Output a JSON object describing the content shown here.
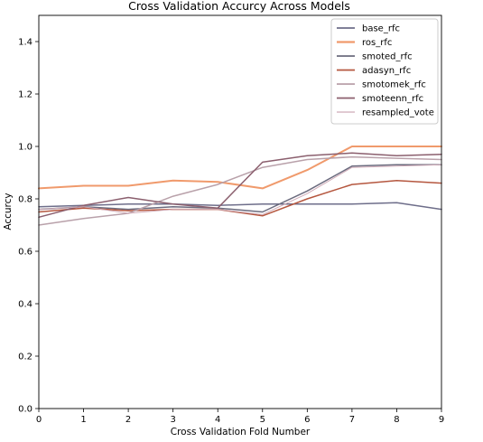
{
  "chart_data": {
    "type": "line",
    "title": "Cross Validation Accurcy Across Models",
    "xlabel": "Cross Validation Fold Number",
    "ylabel": "Accurcy",
    "xlim": [
      0,
      9
    ],
    "ylim": [
      0,
      1.5
    ],
    "x": [
      0,
      1,
      2,
      3,
      4,
      5,
      6,
      7,
      8,
      9
    ],
    "x_ticks": [
      "0",
      "1",
      "2",
      "3",
      "4",
      "5",
      "6",
      "7",
      "8",
      "9"
    ],
    "y_ticks": [
      "0.0",
      "0.2",
      "0.4",
      "0.6",
      "0.8",
      "1.0",
      "1.2",
      "1.4"
    ],
    "y_tick_values": [
      0.0,
      0.2,
      0.4,
      0.6,
      0.8,
      1.0,
      1.2,
      1.4
    ],
    "grid": false,
    "legend_position": "top-right",
    "series": [
      {
        "name": "base_rfc",
        "color": "#6e6e8a",
        "width": 1.5,
        "values": [
          0.77,
          0.775,
          0.78,
          0.78,
          0.775,
          0.78,
          0.78,
          0.78,
          0.785,
          0.76
        ]
      },
      {
        "name": "ros_rfc",
        "color": "#f09a6c",
        "width": 2.0,
        "values": [
          0.84,
          0.85,
          0.85,
          0.87,
          0.865,
          0.84,
          0.91,
          1.0,
          1.0,
          1.0
        ]
      },
      {
        "name": "smoted_rfc",
        "color": "#6b6b7e",
        "width": 1.5,
        "values": [
          0.76,
          0.77,
          0.76,
          0.77,
          0.765,
          0.75,
          0.83,
          0.925,
          0.93,
          0.93
        ]
      },
      {
        "name": "adasyn_rfc",
        "color": "#b5573f",
        "width": 1.5,
        "values": [
          0.75,
          0.765,
          0.755,
          0.76,
          0.76,
          0.735,
          0.8,
          0.855,
          0.87,
          0.86
        ]
      },
      {
        "name": "smotomek_rfc",
        "color": "#b9a1aa",
        "width": 1.5,
        "values": [
          0.7,
          0.725,
          0.745,
          0.81,
          0.855,
          0.92,
          0.95,
          0.96,
          0.955,
          0.95
        ]
      },
      {
        "name": "smoteenn_rfc",
        "color": "#8b5f6e",
        "width": 1.5,
        "values": [
          0.73,
          0.775,
          0.805,
          0.78,
          0.765,
          0.94,
          0.965,
          0.975,
          0.965,
          0.97
        ]
      },
      {
        "name": "resampled_vote",
        "color": "#cfaab6",
        "width": 1.0,
        "values": [
          0.76,
          0.77,
          0.745,
          0.76,
          0.76,
          0.74,
          0.82,
          0.92,
          0.925,
          0.93
        ]
      }
    ]
  }
}
